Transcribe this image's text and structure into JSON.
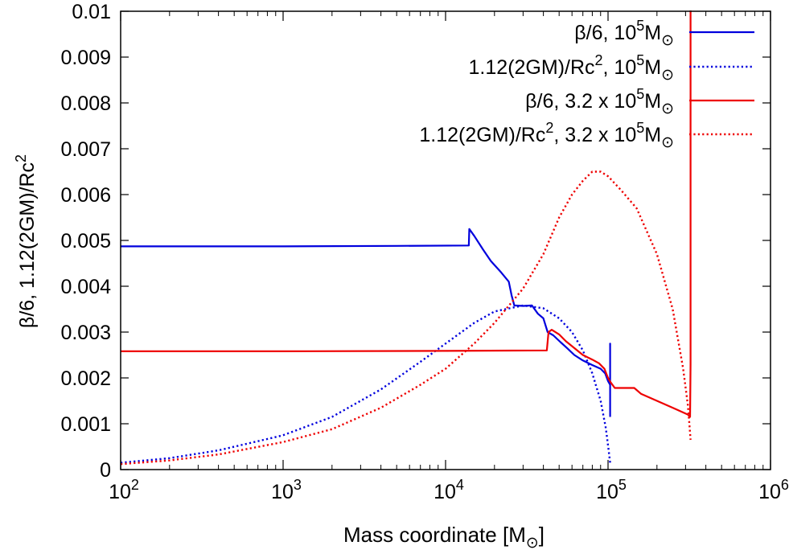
{
  "chart_data": {
    "type": "line",
    "title": "",
    "xscale": "log",
    "xlabel": {
      "main": "Mass coordinate [M",
      "sub": "⊙",
      "end": "]"
    },
    "ylabel": {
      "main": "β/6, 1.12(2GM)/Rc",
      "sup": "2"
    },
    "xlim": [
      100,
      1000000
    ],
    "ylim": [
      0,
      0.01
    ],
    "x_ticks": [
      {
        "base": "10",
        "exp": "2",
        "value": 100
      },
      {
        "base": "10",
        "exp": "3",
        "value": 1000
      },
      {
        "base": "10",
        "exp": "4",
        "value": 10000
      },
      {
        "base": "10",
        "exp": "5",
        "value": 100000
      },
      {
        "base": "10",
        "exp": "6",
        "value": 1000000
      }
    ],
    "y_ticks": [
      {
        "label": "0",
        "value": 0
      },
      {
        "label": "0.001",
        "value": 0.001
      },
      {
        "label": "0.002",
        "value": 0.002
      },
      {
        "label": "0.003",
        "value": 0.003
      },
      {
        "label": "0.004",
        "value": 0.004
      },
      {
        "label": "0.005",
        "value": 0.005
      },
      {
        "label": "0.006",
        "value": 0.006
      },
      {
        "label": "0.007",
        "value": 0.007
      },
      {
        "label": "0.008",
        "value": 0.008
      },
      {
        "label": "0.009",
        "value": 0.009
      },
      {
        "label": "0.01",
        "value": 0.01
      }
    ],
    "legend_position": "top-right",
    "series": [
      {
        "name": "beta6-1e5",
        "legend": {
          "pre": "β/6, 10",
          "sup": "5",
          "mid": "M",
          "sub": "⊙",
          "post": ""
        },
        "color": "#0000dd",
        "dash": "solid",
        "points": [
          [
            100,
            0.00487
          ],
          [
            1000,
            0.00487
          ],
          [
            5000,
            0.00488
          ],
          [
            13900,
            0.00489
          ],
          [
            14000,
            0.00525
          ],
          [
            15000,
            0.0051
          ],
          [
            17000,
            0.0048
          ],
          [
            19000,
            0.00455
          ],
          [
            22000,
            0.0043
          ],
          [
            24500,
            0.0041
          ],
          [
            25500,
            0.0038
          ],
          [
            26500,
            0.00358
          ],
          [
            30000,
            0.00357
          ],
          [
            34000,
            0.00358
          ],
          [
            37000,
            0.0034
          ],
          [
            40000,
            0.0033
          ],
          [
            42500,
            0.003
          ],
          [
            46000,
            0.00293
          ],
          [
            51000,
            0.00278
          ],
          [
            56000,
            0.00265
          ],
          [
            62000,
            0.0025
          ],
          [
            70000,
            0.00238
          ],
          [
            80000,
            0.00228
          ],
          [
            90000,
            0.0022
          ],
          [
            96000,
            0.0021
          ],
          [
            100000,
            0.00193
          ],
          [
            103000,
            0.00185
          ],
          [
            103000,
            0.00275
          ],
          [
            103000,
            0.00115
          ]
        ]
      },
      {
        "name": "bound-1e5",
        "legend": {
          "pre": "1.12(2GM)/Rc",
          "sup": "2",
          "mid": ", 10",
          "sup2": "5",
          "mid2": "M",
          "sub": "⊙",
          "post": ""
        },
        "color": "#0000dd",
        "dash": "dotted",
        "points": [
          [
            100,
            0.00015
          ],
          [
            200,
            0.00025
          ],
          [
            400,
            0.00042
          ],
          [
            700,
            0.00062
          ],
          [
            1000,
            0.00075
          ],
          [
            2000,
            0.00115
          ],
          [
            4000,
            0.00175
          ],
          [
            7000,
            0.00235
          ],
          [
            10000,
            0.00275
          ],
          [
            15000,
            0.0032
          ],
          [
            20000,
            0.00345
          ],
          [
            30000,
            0.00358
          ],
          [
            40000,
            0.00352
          ],
          [
            50000,
            0.0033
          ],
          [
            60000,
            0.003
          ],
          [
            70000,
            0.0026
          ],
          [
            80000,
            0.0021
          ],
          [
            90000,
            0.0015
          ],
          [
            97000,
            0.0009
          ],
          [
            101000,
            0.0004
          ],
          [
            103000,
            0.00015
          ]
        ]
      },
      {
        "name": "beta6-3.2e5",
        "legend": {
          "pre": "β/6, 3.2 x 10",
          "sup": "5",
          "mid": "M",
          "sub": "⊙",
          "post": ""
        },
        "color": "#ee0000",
        "dash": "solid",
        "points": [
          [
            100,
            0.00258
          ],
          [
            1000,
            0.00258
          ],
          [
            10000,
            0.00259
          ],
          [
            42000,
            0.0026
          ],
          [
            43000,
            0.003
          ],
          [
            45000,
            0.00305
          ],
          [
            50000,
            0.00295
          ],
          [
            55000,
            0.0028
          ],
          [
            62000,
            0.00265
          ],
          [
            70000,
            0.0025
          ],
          [
            80000,
            0.0024
          ],
          [
            88000,
            0.00232
          ],
          [
            95000,
            0.0022
          ],
          [
            100000,
            0.002
          ],
          [
            104000,
            0.0019
          ],
          [
            110000,
            0.00178
          ],
          [
            145000,
            0.00178
          ],
          [
            160000,
            0.00165
          ],
          [
            200000,
            0.0015
          ],
          [
            250000,
            0.00135
          ],
          [
            310000,
            0.0012
          ],
          [
            320000,
            0.00115
          ],
          [
            322000,
            0.0023
          ],
          [
            322000,
            0.0101
          ]
        ]
      },
      {
        "name": "bound-3.2e5",
        "legend": {
          "pre": "1.12(2GM)/Rc",
          "sup": "2",
          "mid": ", 3.2 x 10",
          "sup2": "5",
          "mid2": "M",
          "sub": "⊙",
          "post": ""
        },
        "color": "#ee0000",
        "dash": "dotted",
        "points": [
          [
            100,
            0.00012
          ],
          [
            200,
            0.0002
          ],
          [
            400,
            0.00033
          ],
          [
            1000,
            0.0006
          ],
          [
            2000,
            0.00088
          ],
          [
            4000,
            0.00135
          ],
          [
            7000,
            0.00185
          ],
          [
            10000,
            0.0022
          ],
          [
            15000,
            0.00275
          ],
          [
            20000,
            0.0032
          ],
          [
            30000,
            0.00395
          ],
          [
            40000,
            0.0047
          ],
          [
            50000,
            0.0055
          ],
          [
            60000,
            0.006
          ],
          [
            70000,
            0.0063
          ],
          [
            80000,
            0.0065
          ],
          [
            90000,
            0.0065
          ],
          [
            100000,
            0.0064
          ],
          [
            120000,
            0.0061
          ],
          [
            150000,
            0.0057
          ],
          [
            200000,
            0.0047
          ],
          [
            250000,
            0.0035
          ],
          [
            290000,
            0.0022
          ],
          [
            310000,
            0.0014
          ],
          [
            320000,
            0.0008
          ],
          [
            322000,
            0.00065
          ]
        ]
      }
    ]
  }
}
